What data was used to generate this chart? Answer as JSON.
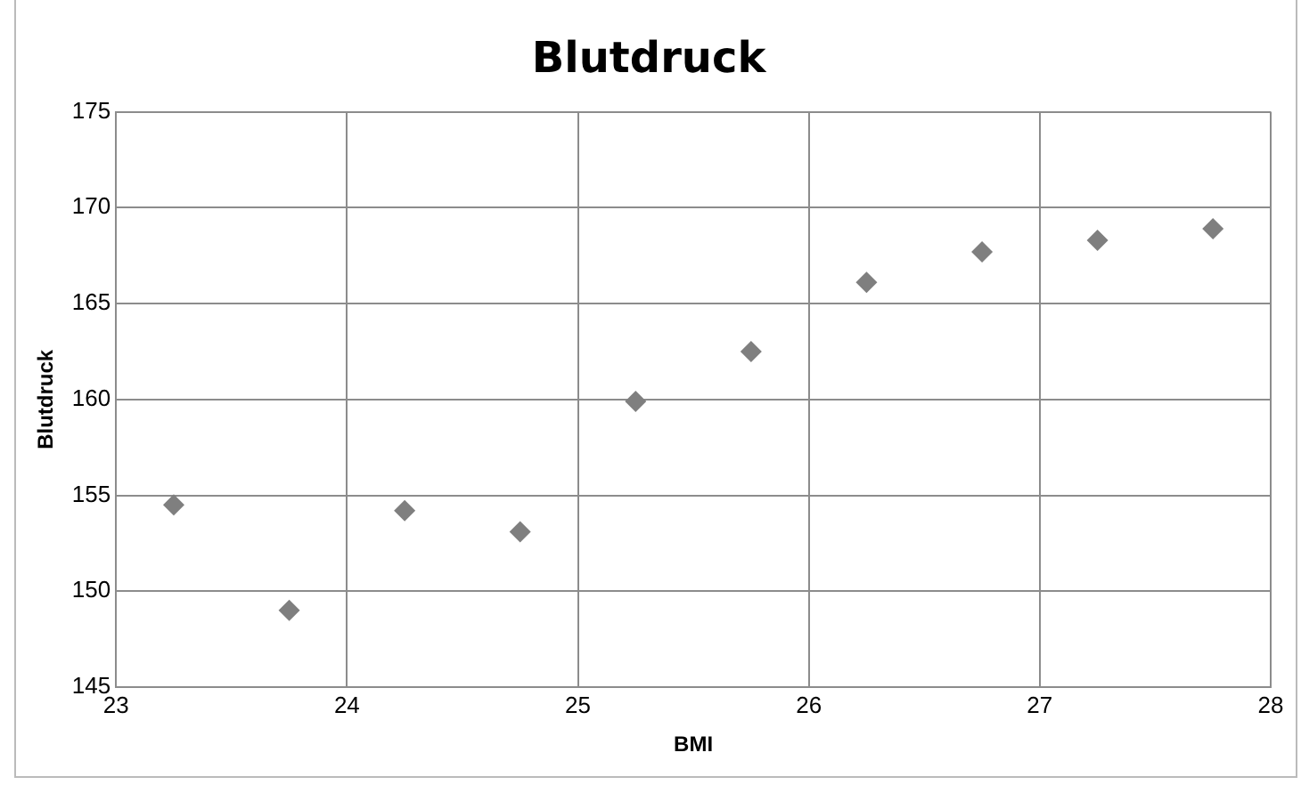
{
  "chart_data": {
    "type": "scatter",
    "title": "Blutdruck",
    "xlabel": "BMI",
    "ylabel": "Blutdruck",
    "x": [
      23.25,
      23.75,
      24.25,
      24.75,
      25.25,
      25.75,
      26.25,
      26.75,
      27.25,
      27.75
    ],
    "series": [
      {
        "color": "#7f7f7f",
        "values": [
          154.5,
          149,
          154.2,
          153.1,
          159.9,
          162.5,
          166.1,
          167.7,
          168.3,
          168.9
        ]
      }
    ],
    "xlim": [
      23,
      28
    ],
    "xticks": [
      23,
      24,
      25,
      26,
      27,
      28
    ],
    "ylim": [
      145,
      175
    ],
    "yticks": [
      145,
      150,
      155,
      160,
      165,
      170,
      175
    ],
    "grid": true,
    "legend": false,
    "marker": "diamond"
  }
}
